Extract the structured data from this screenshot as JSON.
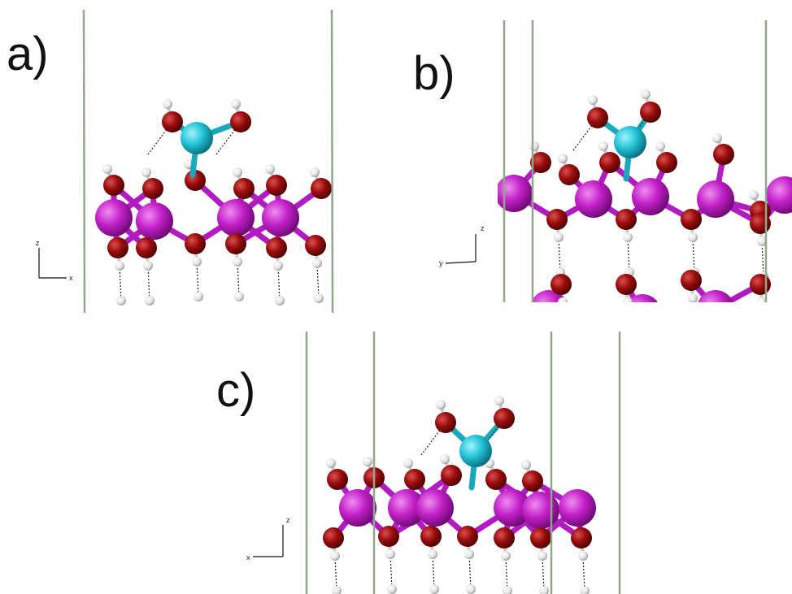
{
  "panels": [
    {
      "label": "a)",
      "axes": {
        "vertical": "z",
        "horizontal": "x"
      }
    },
    {
      "label": "b)",
      "axes": {
        "vertical": "z",
        "horizontal": "y"
      }
    },
    {
      "label": "c)",
      "axes": {
        "vertical": "z",
        "horizontal": "x"
      }
    }
  ]
}
